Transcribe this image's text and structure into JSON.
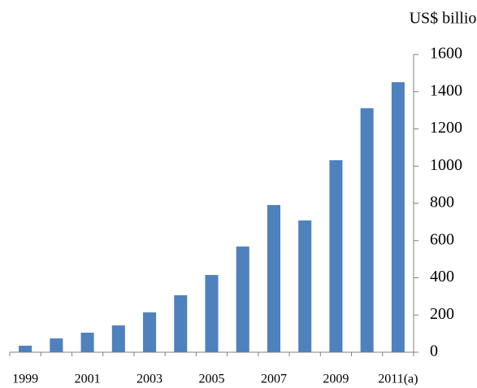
{
  "chart_data": {
    "type": "bar",
    "y_axis_label": "US$ billion",
    "categories": [
      "1999",
      null,
      "2001",
      null,
      "2003",
      null,
      "2005",
      null,
      "2007",
      null,
      "2009",
      null,
      "2011(a)"
    ],
    "values": [
      35,
      74,
      105,
      144,
      214,
      306,
      415,
      568,
      791,
      708,
      1032,
      1311,
      1451
    ],
    "color": "#4f81bd",
    "ylim": [
      0,
      1600
    ],
    "yticks": [
      0,
      200,
      400,
      600,
      800,
      1000,
      1200,
      1400,
      1600
    ],
    "y_axis_side": "right",
    "grid": false
  }
}
